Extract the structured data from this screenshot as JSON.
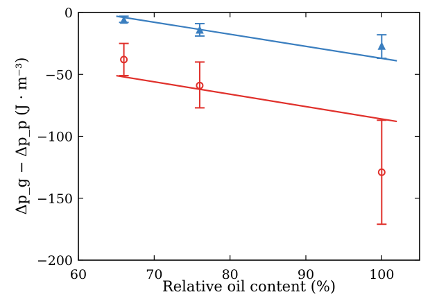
{
  "chart_data": {
    "type": "scatter",
    "xlabel": "Relative oil content (%)",
    "ylabel": "Δp_g − Δp_p (J · m⁻³)",
    "xlim": [
      60,
      105
    ],
    "ylim": [
      -200,
      0
    ],
    "xticks": [
      60,
      70,
      80,
      90,
      100
    ],
    "yticks": [
      0,
      -50,
      -100,
      -150,
      -200
    ],
    "xtick_labels": [
      "60",
      "70",
      "80",
      "90",
      "100"
    ],
    "ytick_labels": [
      "0",
      "−50",
      "−100",
      "−150",
      "−200"
    ],
    "grid": false,
    "series": [
      {
        "marker": "triangle",
        "color": "#3a7ebf",
        "points": [
          {
            "x": 66,
            "y": -6,
            "err_low": -8,
            "err_high": -3
          },
          {
            "x": 76,
            "y": -14,
            "err_low": -19,
            "err_high": -9
          },
          {
            "x": 100,
            "y": -27,
            "err_low": -37,
            "err_high": -18
          }
        ],
        "fit_line": {
          "x": [
            65,
            102
          ],
          "y": [
            -3,
            -39
          ]
        }
      },
      {
        "marker": "circle",
        "color": "#e0302b",
        "points": [
          {
            "x": 66,
            "y": -38,
            "err_low": -51,
            "err_high": -25
          },
          {
            "x": 76,
            "y": -59,
            "err_low": -77,
            "err_high": -40
          },
          {
            "x": 100,
            "y": -129,
            "err_low": -171,
            "err_high": -87
          }
        ],
        "fit_line": {
          "x": [
            65,
            102
          ],
          "y": [
            -51,
            -88
          ]
        }
      }
    ]
  }
}
